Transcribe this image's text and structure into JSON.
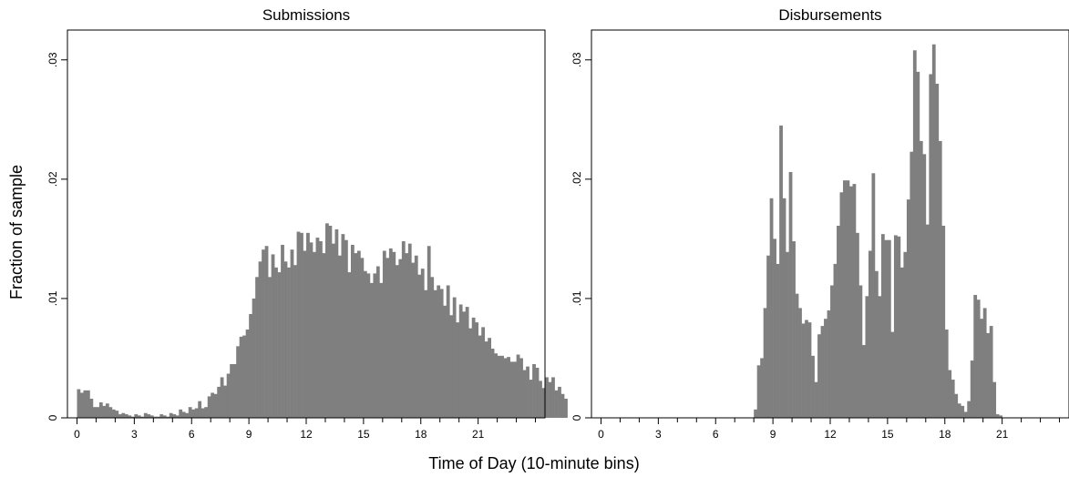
{
  "figure": {
    "ylabel": "Fraction of sample",
    "xlabel": "Time of Day (10-minute bins)",
    "bar_color": "#7f7f7f",
    "frame_color": "#000000"
  },
  "chart_data": [
    {
      "type": "bar",
      "title": "Submissions",
      "bin_width_hours": 0.1667,
      "xlim": [
        -0.5,
        24.5
      ],
      "ylim": [
        0,
        0.0325
      ],
      "x_ticks": [
        0,
        3,
        6,
        9,
        12,
        15,
        18,
        21
      ],
      "y_ticks": [
        0,
        0.01,
        0.02,
        0.03
      ],
      "y_tick_labels": [
        "0",
        ".01",
        ".02",
        ".03"
      ],
      "values": [
        0.0024,
        0.0021,
        0.0023,
        0.0023,
        0.0016,
        0.0009,
        0.0009,
        0.0013,
        0.001,
        0.0012,
        0.0009,
        0.0007,
        0.0006,
        0.0003,
        0.0004,
        0.0003,
        0.0002,
        0.0001,
        0.0003,
        0.0002,
        0.0001,
        0.0004,
        0.0003,
        0.0002,
        0.0001,
        0.0001,
        0.0003,
        0.0002,
        0.0001,
        0.0004,
        0.0003,
        0.0002,
        0.0007,
        0.0005,
        0.0004,
        0.0009,
        0.0007,
        0.0008,
        0.0014,
        0.0008,
        0.0009,
        0.0018,
        0.0021,
        0.002,
        0.0026,
        0.0034,
        0.0027,
        0.0037,
        0.0045,
        0.0045,
        0.006,
        0.0068,
        0.0069,
        0.0074,
        0.0087,
        0.01,
        0.0118,
        0.0131,
        0.0141,
        0.0144,
        0.0118,
        0.0137,
        0.0126,
        0.0122,
        0.0145,
        0.0131,
        0.0126,
        0.0141,
        0.0128,
        0.0156,
        0.0155,
        0.014,
        0.0155,
        0.0147,
        0.0139,
        0.0151,
        0.0148,
        0.0138,
        0.0163,
        0.0161,
        0.0146,
        0.0158,
        0.0136,
        0.0154,
        0.0149,
        0.0122,
        0.0145,
        0.0138,
        0.014,
        0.0134,
        0.0123,
        0.0121,
        0.0113,
        0.0121,
        0.0127,
        0.0113,
        0.014,
        0.0134,
        0.0142,
        0.0139,
        0.0128,
        0.0133,
        0.0148,
        0.0138,
        0.0146,
        0.013,
        0.0136,
        0.012,
        0.0125,
        0.0107,
        0.0144,
        0.0118,
        0.0107,
        0.0111,
        0.0108,
        0.0094,
        0.0111,
        0.0086,
        0.0101,
        0.008,
        0.0095,
        0.0089,
        0.0093,
        0.0075,
        0.0084,
        0.008,
        0.0069,
        0.0076,
        0.0064,
        0.0067,
        0.0058,
        0.0054,
        0.0052,
        0.0052,
        0.005,
        0.0051,
        0.0047,
        0.0047,
        0.0053,
        0.005,
        0.004,
        0.0043,
        0.0032,
        0.0045,
        0.0042,
        0.0031,
        0.0025,
        0.0034,
        0.003,
        0.0034,
        0.0023,
        0.0026,
        0.002,
        0.0016
      ]
    },
    {
      "type": "bar",
      "title": "Disbursements",
      "bin_width_hours": 0.1667,
      "xlim": [
        -0.5,
        24.5
      ],
      "ylim": [
        0,
        0.0325
      ],
      "x_ticks": [
        0,
        3,
        6,
        9,
        12,
        15,
        18,
        21
      ],
      "y_ticks": [
        0,
        0.01,
        0.02,
        0.03
      ],
      "y_tick_labels": [
        "0",
        ".01",
        ".02",
        ".03"
      ],
      "values": [
        0,
        0,
        0,
        0,
        0,
        0,
        0,
        0,
        0,
        0,
        0,
        0,
        0,
        0,
        0,
        0,
        0,
        0,
        0,
        0,
        0,
        0,
        0,
        0,
        0,
        0,
        0,
        0,
        0,
        0,
        0,
        0,
        0,
        0,
        0,
        0,
        0,
        0,
        0,
        0,
        0,
        0,
        0,
        0,
        0,
        0,
        0,
        0,
        0.0007,
        0.0044,
        0.005,
        0.0092,
        0.0136,
        0.0184,
        0.015,
        0.0129,
        0.0245,
        0.0184,
        0.0139,
        0.0206,
        0.0148,
        0.0104,
        0.0092,
        0.0079,
        0.0082,
        0.008,
        0.0052,
        0.003,
        0.007,
        0.0077,
        0.0083,
        0.009,
        0.0111,
        0.0129,
        0.0161,
        0.0189,
        0.0199,
        0.0199,
        0.0194,
        0.0196,
        0.0155,
        0.0111,
        0.0061,
        0.0102,
        0.014,
        0.0205,
        0.0123,
        0.0102,
        0.0154,
        0.0149,
        0.0149,
        0.0072,
        0.0153,
        0.0152,
        0.0126,
        0.0139,
        0.0183,
        0.0223,
        0.0308,
        0.029,
        0.0232,
        0.0221,
        0.0162,
        0.0288,
        0.0313,
        0.028,
        0.0232,
        0.0161,
        0.0074,
        0.004,
        0.0032,
        0.002,
        0.0012,
        0.001,
        0.0005,
        0.0014,
        0.0048,
        0.0103,
        0.0099,
        0.0083,
        0.0092,
        0.0071,
        0.0077,
        0.003,
        0.0003,
        0.0002,
        0,
        0,
        0,
        0,
        0,
        0
      ]
    }
  ]
}
